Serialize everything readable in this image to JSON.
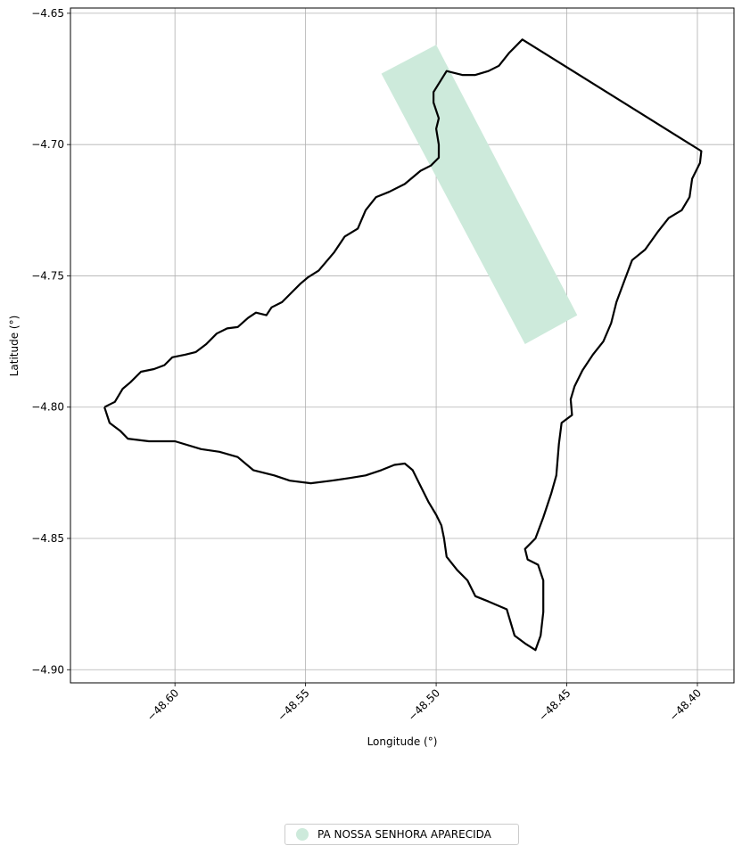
{
  "chart_data": {
    "type": "map",
    "title": "",
    "xlabel": "Longitude (°)",
    "ylabel": "Latitude (°)",
    "xlim": [
      -48.64,
      -48.386
    ],
    "ylim": [
      -4.905,
      -4.648
    ],
    "grid": true,
    "x_ticks": [
      {
        "value": -48.6,
        "label": "−48.60"
      },
      {
        "value": -48.55,
        "label": "−48.55"
      },
      {
        "value": -48.5,
        "label": "−48.50"
      },
      {
        "value": -48.45,
        "label": "−48.45"
      },
      {
        "value": -48.4,
        "label": "−48.40"
      }
    ],
    "y_ticks": [
      {
        "value": -4.65,
        "label": "−4.65"
      },
      {
        "value": -4.7,
        "label": "−4.70"
      },
      {
        "value": -4.75,
        "label": "−4.75"
      },
      {
        "value": -4.8,
        "label": "−4.80"
      },
      {
        "value": -4.85,
        "label": "−4.85"
      },
      {
        "value": -4.9,
        "label": "−4.90"
      }
    ],
    "boundary": {
      "color": "#000000",
      "coordinates": [
        [
          -48.627,
          -4.8
        ],
        [
          -48.623,
          -4.798
        ],
        [
          -48.62,
          -4.793
        ],
        [
          -48.617,
          -4.7905
        ],
        [
          -48.613,
          -4.7865
        ],
        [
          -48.608,
          -4.7855
        ],
        [
          -48.604,
          -4.784
        ],
        [
          -48.601,
          -4.781
        ],
        [
          -48.596,
          -4.78
        ],
        [
          -48.592,
          -4.779
        ],
        [
          -48.588,
          -4.776
        ],
        [
          -48.584,
          -4.772
        ],
        [
          -48.58,
          -4.77
        ],
        [
          -48.576,
          -4.7695
        ],
        [
          -48.572,
          -4.766
        ],
        [
          -48.569,
          -4.764
        ],
        [
          -48.565,
          -4.765
        ],
        [
          -48.563,
          -4.762
        ],
        [
          -48.559,
          -4.76
        ],
        [
          -48.555,
          -4.756
        ],
        [
          -48.552,
          -4.753
        ],
        [
          -48.549,
          -4.7505
        ],
        [
          -48.545,
          -4.748
        ],
        [
          -48.539,
          -4.741
        ],
        [
          -48.535,
          -4.735
        ],
        [
          -48.53,
          -4.732
        ],
        [
          -48.527,
          -4.725
        ],
        [
          -48.523,
          -4.72
        ],
        [
          -48.518,
          -4.718
        ],
        [
          -48.512,
          -4.715
        ],
        [
          -48.506,
          -4.71
        ],
        [
          -48.502,
          -4.708
        ],
        [
          -48.499,
          -4.705
        ],
        [
          -48.499,
          -4.7
        ],
        [
          -48.5,
          -4.694
        ],
        [
          -48.499,
          -4.69
        ],
        [
          -48.501,
          -4.684
        ],
        [
          -48.501,
          -4.68
        ],
        [
          -48.496,
          -4.672
        ],
        [
          -48.49,
          -4.6735
        ],
        [
          -48.485,
          -4.6735
        ],
        [
          -48.48,
          -4.672
        ],
        [
          -48.476,
          -4.67
        ],
        [
          -48.472,
          -4.665
        ],
        [
          -48.47,
          -4.663
        ],
        [
          -48.467,
          -4.66
        ],
        [
          -48.3985,
          -4.7025
        ],
        [
          -48.399,
          -4.707
        ],
        [
          -48.402,
          -4.713
        ],
        [
          -48.403,
          -4.72
        ],
        [
          -48.406,
          -4.725
        ],
        [
          -48.411,
          -4.728
        ],
        [
          -48.415,
          -4.733
        ],
        [
          -48.42,
          -4.74
        ],
        [
          -48.425,
          -4.744
        ],
        [
          -48.428,
          -4.752
        ],
        [
          -48.431,
          -4.76
        ],
        [
          -48.433,
          -4.768
        ],
        [
          -48.436,
          -4.775
        ],
        [
          -48.44,
          -4.78
        ],
        [
          -48.444,
          -4.786
        ],
        [
          -48.447,
          -4.792
        ],
        [
          -48.4485,
          -4.797
        ],
        [
          -48.448,
          -4.803
        ],
        [
          -48.452,
          -4.806
        ],
        [
          -48.453,
          -4.814
        ],
        [
          -48.454,
          -4.826
        ],
        [
          -48.456,
          -4.833
        ],
        [
          -48.459,
          -4.842
        ],
        [
          -48.462,
          -4.85
        ],
        [
          -48.466,
          -4.854
        ],
        [
          -48.465,
          -4.858
        ],
        [
          -48.461,
          -4.86
        ],
        [
          -48.459,
          -4.866
        ],
        [
          -48.459,
          -4.878
        ],
        [
          -48.46,
          -4.887
        ],
        [
          -48.462,
          -4.8925
        ],
        [
          -48.466,
          -4.89
        ],
        [
          -48.47,
          -4.887
        ],
        [
          -48.473,
          -4.877
        ],
        [
          -48.48,
          -4.874
        ],
        [
          -48.485,
          -4.872
        ],
        [
          -48.488,
          -4.866
        ],
        [
          -48.492,
          -4.862
        ],
        [
          -48.496,
          -4.857
        ],
        [
          -48.497,
          -4.85
        ],
        [
          -48.498,
          -4.845
        ],
        [
          -48.5,
          -4.841
        ],
        [
          -48.503,
          -4.836
        ],
        [
          -48.506,
          -4.83
        ],
        [
          -48.509,
          -4.824
        ],
        [
          -48.512,
          -4.8215
        ],
        [
          -48.516,
          -4.822
        ],
        [
          -48.521,
          -4.824
        ],
        [
          -48.527,
          -4.826
        ],
        [
          -48.533,
          -4.827
        ],
        [
          -48.54,
          -4.828
        ],
        [
          -48.548,
          -4.829
        ],
        [
          -48.556,
          -4.828
        ],
        [
          -48.562,
          -4.826
        ],
        [
          -48.57,
          -4.824
        ],
        [
          -48.576,
          -4.819
        ],
        [
          -48.583,
          -4.817
        ],
        [
          -48.59,
          -4.816
        ],
        [
          -48.6,
          -4.813
        ],
        [
          -48.61,
          -4.813
        ],
        [
          -48.618,
          -4.812
        ],
        [
          -48.621,
          -4.809
        ],
        [
          -48.625,
          -4.806
        ],
        [
          -48.627,
          -4.8
        ]
      ]
    },
    "series": [
      {
        "name": "PA NOSSA SENHORA APARECIDA",
        "color": "#cdeadb",
        "polygon": [
          [
            -48.521,
            -4.673
          ],
          [
            -48.5,
            -4.662
          ],
          [
            -48.446,
            -4.765
          ],
          [
            -48.466,
            -4.776
          ]
        ]
      }
    ],
    "legend": {
      "placement": "bottom-center"
    }
  }
}
